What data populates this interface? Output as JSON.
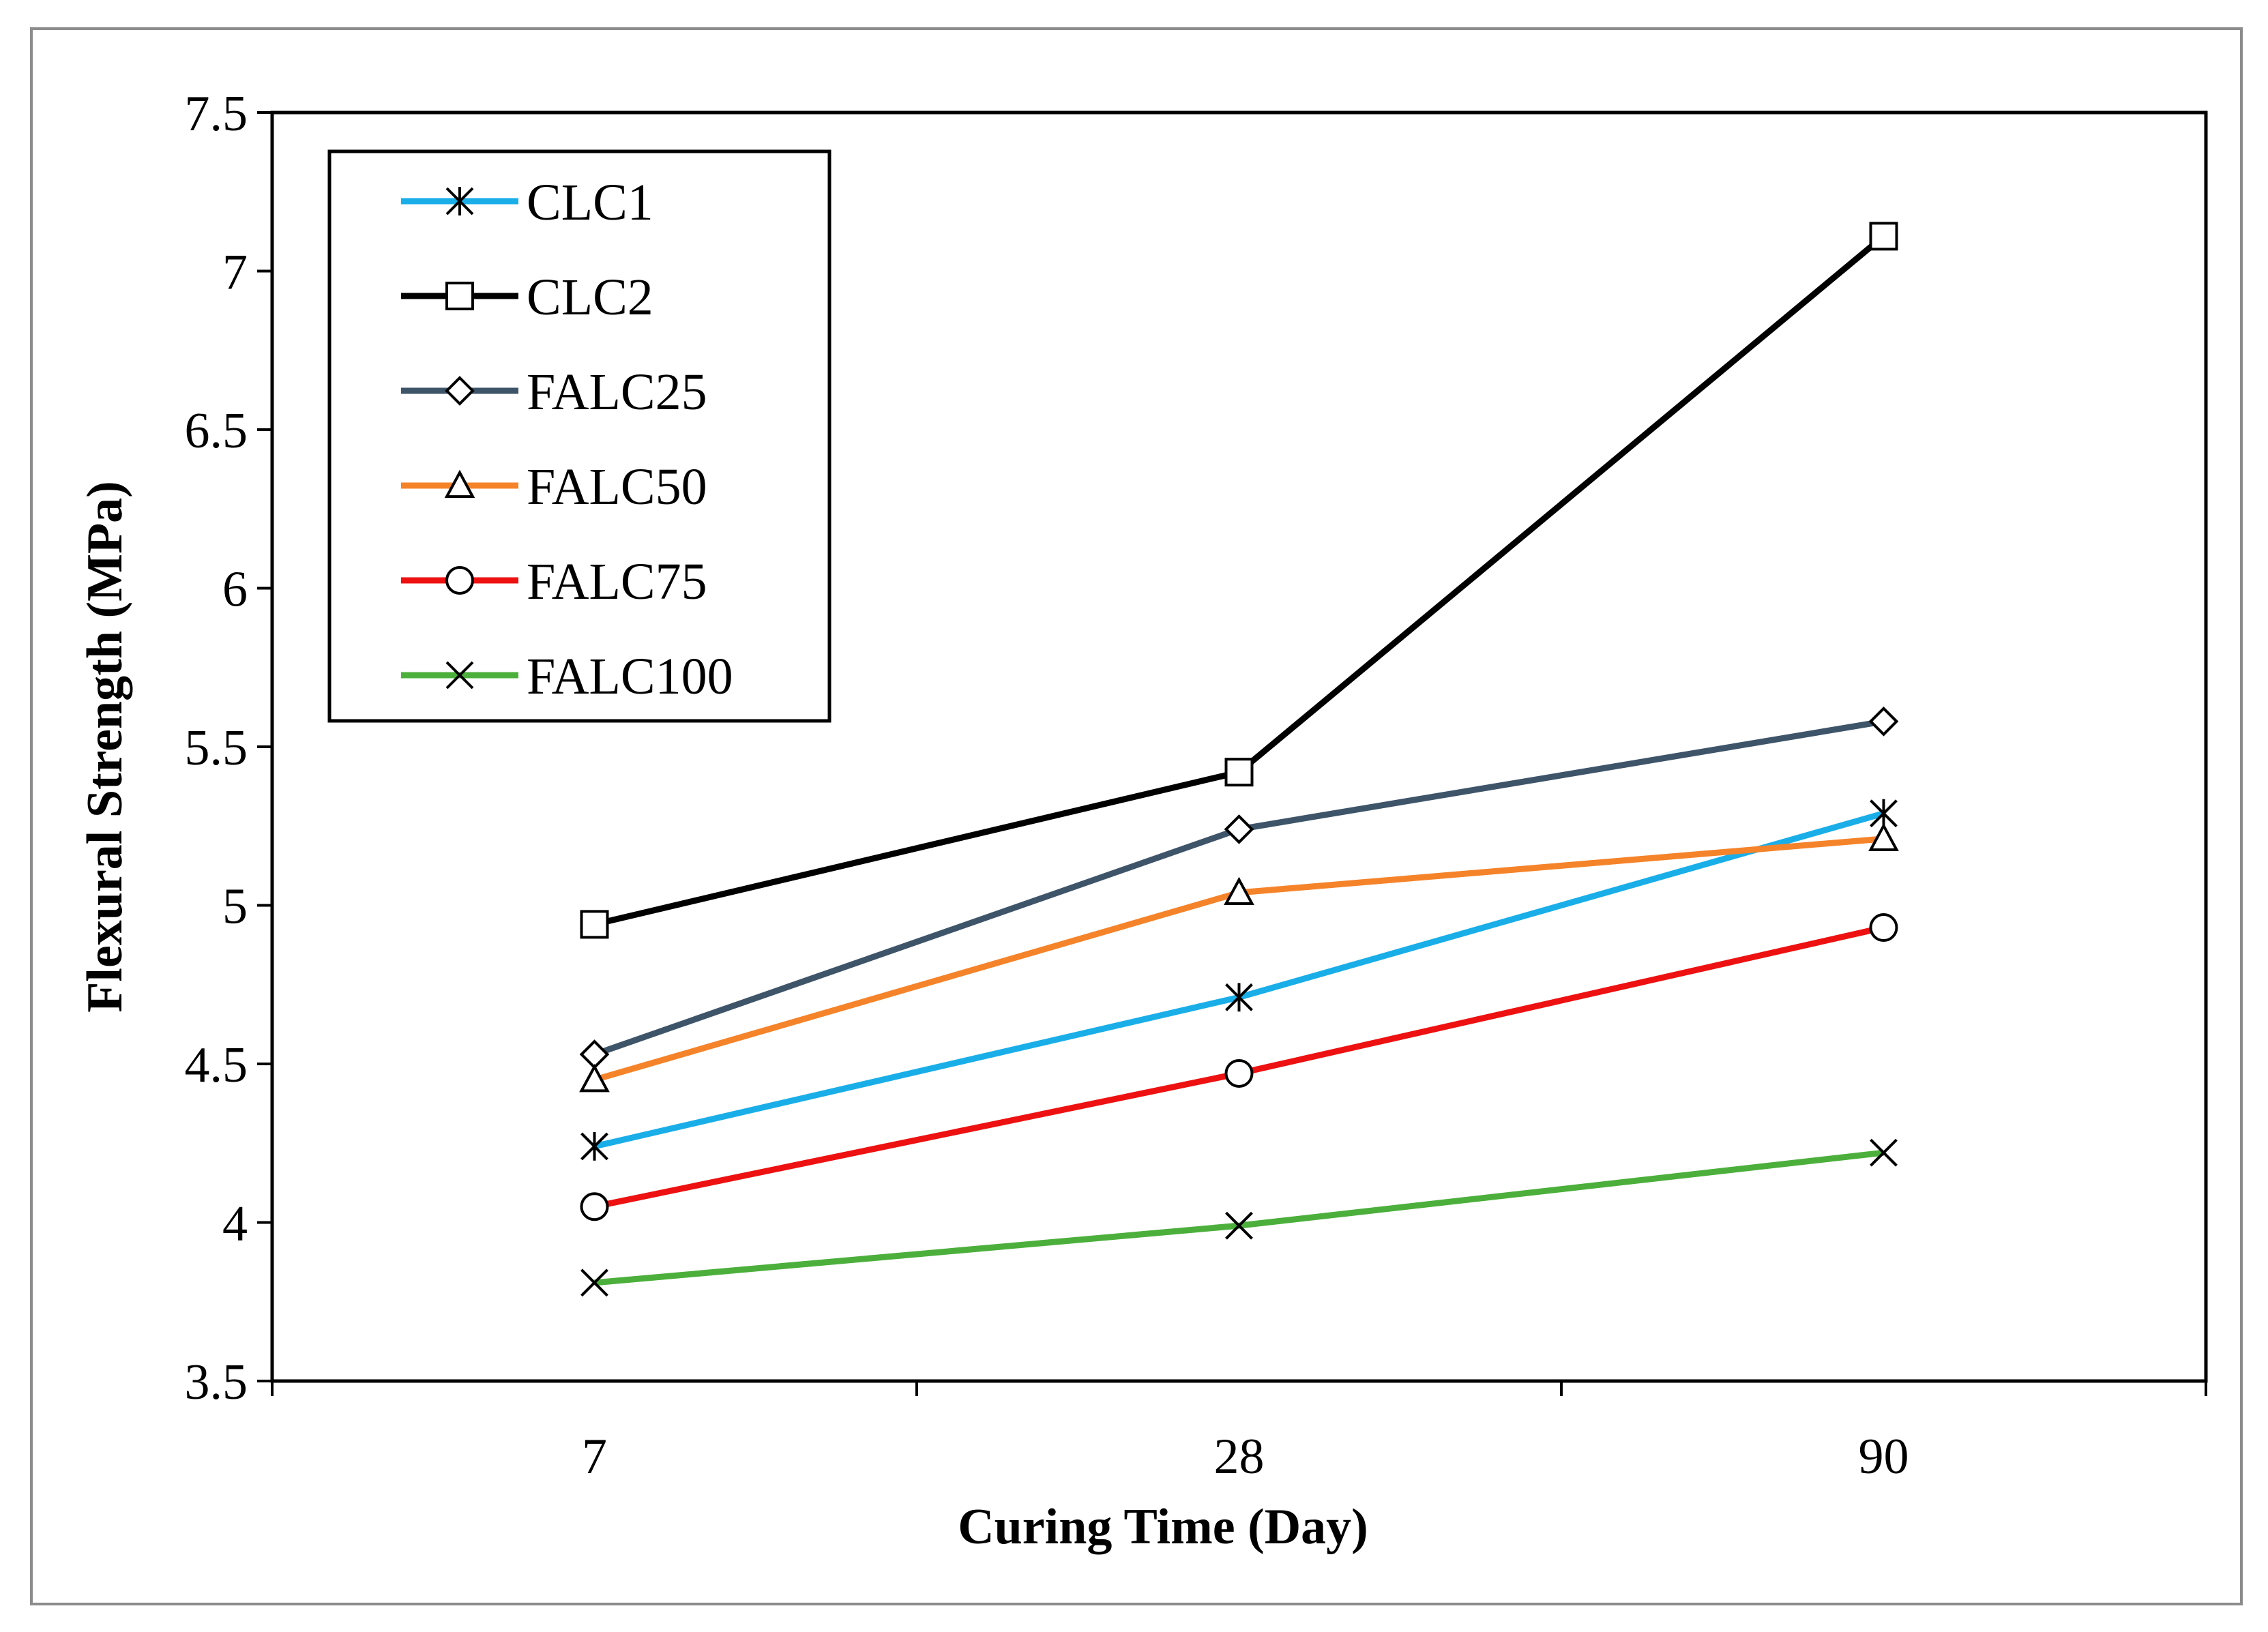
{
  "chart_data": {
    "type": "line",
    "categories": [
      "7",
      "28",
      "90"
    ],
    "xlabel": "Curing Time (Day)",
    "ylabel": "Flexural  Strength (MPa)",
    "ylim": [
      3.5,
      7.5
    ],
    "ytick_step": 0.5,
    "yticks": [
      "3.5",
      "4",
      "4.5",
      "5",
      "5.5",
      "6",
      "6.5",
      "7",
      "7.5"
    ],
    "grid": false,
    "legend_position": "top-left",
    "series": [
      {
        "name": "CLC1",
        "values": [
          4.24,
          4.71,
          5.29
        ],
        "color": "#1aaee8",
        "marker": "asterisk"
      },
      {
        "name": "CLC2",
        "values": [
          4.94,
          5.42,
          7.11
        ],
        "color": "#000000",
        "marker": "square"
      },
      {
        "name": "FALC25",
        "values": [
          4.53,
          5.24,
          5.58
        ],
        "color": "#3e5469",
        "marker": "diamond"
      },
      {
        "name": "FALC50",
        "values": [
          4.45,
          5.04,
          5.21
        ],
        "color": "#f5832a",
        "marker": "triangle"
      },
      {
        "name": "FALC75",
        "values": [
          4.05,
          4.47,
          4.93
        ],
        "color": "#ee1111",
        "marker": "circle"
      },
      {
        "name": "FALC100",
        "values": [
          3.81,
          3.99,
          4.22
        ],
        "color": "#4caf3c",
        "marker": "x"
      }
    ]
  }
}
